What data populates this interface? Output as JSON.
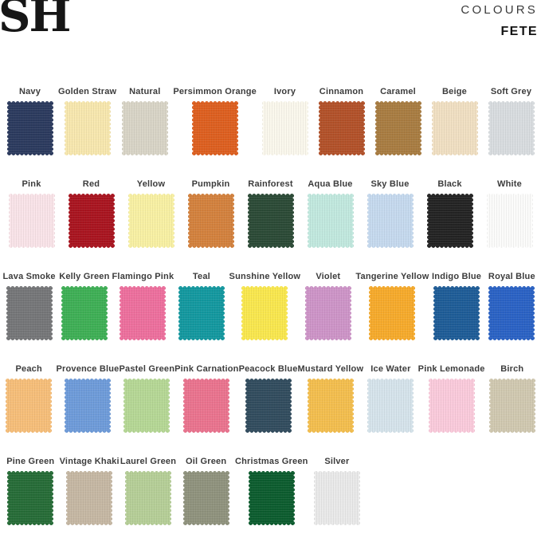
{
  "header": {
    "logo": "SH",
    "collection_label": "COLOURS",
    "collection_name": "FETE"
  },
  "accent_colors": {
    "logo_text": "#161616",
    "label_text": "#3c3c3c",
    "background": "#ffffff"
  },
  "rows": [
    {
      "swatches": [
        {
          "name": "Navy",
          "color": "#2B3A5E"
        },
        {
          "name": "Golden Straw",
          "color": "#F7E7AE"
        },
        {
          "name": "Natural",
          "color": "#D8D4C6"
        },
        {
          "name": "Persimmon Orange",
          "color": "#DD5F1F"
        },
        {
          "name": "Ivory",
          "color": "#FAF7EC"
        },
        {
          "name": "Cinnamon",
          "color": "#B25129"
        },
        {
          "name": "Caramel",
          "color": "#A87C41"
        },
        {
          "name": "Beige",
          "color": "#F0DFC2"
        },
        {
          "name": "Soft Grey",
          "color": "#D8DCDF"
        }
      ]
    },
    {
      "swatches": [
        {
          "name": "Pink",
          "color": "#F9E3E8"
        },
        {
          "name": "Red",
          "color": "#A9141F"
        },
        {
          "name": "Yellow",
          "color": "#F8F0A3"
        },
        {
          "name": "Pumpkin",
          "color": "#D3813D"
        },
        {
          "name": "Rainforest",
          "color": "#2B4A36"
        },
        {
          "name": "Aqua Blue",
          "color": "#C1E8DE"
        },
        {
          "name": "Sky Blue",
          "color": "#C5D9EE"
        },
        {
          "name": "Black",
          "color": "#232323"
        },
        {
          "name": "White",
          "color": "#FBFBFA"
        }
      ]
    },
    {
      "swatches": [
        {
          "name": "Lava Smoke",
          "color": "#757678"
        },
        {
          "name": "Kelly Green",
          "color": "#3EAF55"
        },
        {
          "name": "Flamingo Pink",
          "color": "#ED6F9D"
        },
        {
          "name": "Teal",
          "color": "#13989F"
        },
        {
          "name": "Sunshine Yellow",
          "color": "#F9E74E"
        },
        {
          "name": "Violet",
          "color": "#CD94C7"
        },
        {
          "name": "Tangerine Yellow",
          "color": "#F6AA2B"
        },
        {
          "name": "Indigo Blue",
          "color": "#1E5C97"
        },
        {
          "name": "Royal Blue",
          "color": "#2A62C4"
        }
      ]
    },
    {
      "swatches": [
        {
          "name": "Peach",
          "color": "#F6BE79"
        },
        {
          "name": "Provence Blue",
          "color": "#6E9BD9"
        },
        {
          "name": "Pastel Green",
          "color": "#B5D795"
        },
        {
          "name": "Pink Carnation",
          "color": "#EA738E"
        },
        {
          "name": "Peacock Blue",
          "color": "#314C5E"
        },
        {
          "name": "Mustard Yellow",
          "color": "#F3BE4E"
        },
        {
          "name": "Ice Water",
          "color": "#D5E3EB"
        },
        {
          "name": "Pink Lemonade",
          "color": "#FACADB"
        },
        {
          "name": "Birch",
          "color": "#D0C8B0"
        }
      ]
    },
    {
      "swatches": [
        {
          "name": "Pine Green",
          "color": "#266C37"
        },
        {
          "name": "Vintage Khaki",
          "color": "#C5B7A3"
        },
        {
          "name": "Laurel Green",
          "color": "#B5CE97"
        },
        {
          "name": "Oil Green",
          "color": "#8F927D"
        },
        {
          "name": "Christmas Green",
          "color": "#0C5C2E"
        },
        {
          "name": "Silver",
          "color": "#E9E9E9"
        }
      ]
    }
  ]
}
